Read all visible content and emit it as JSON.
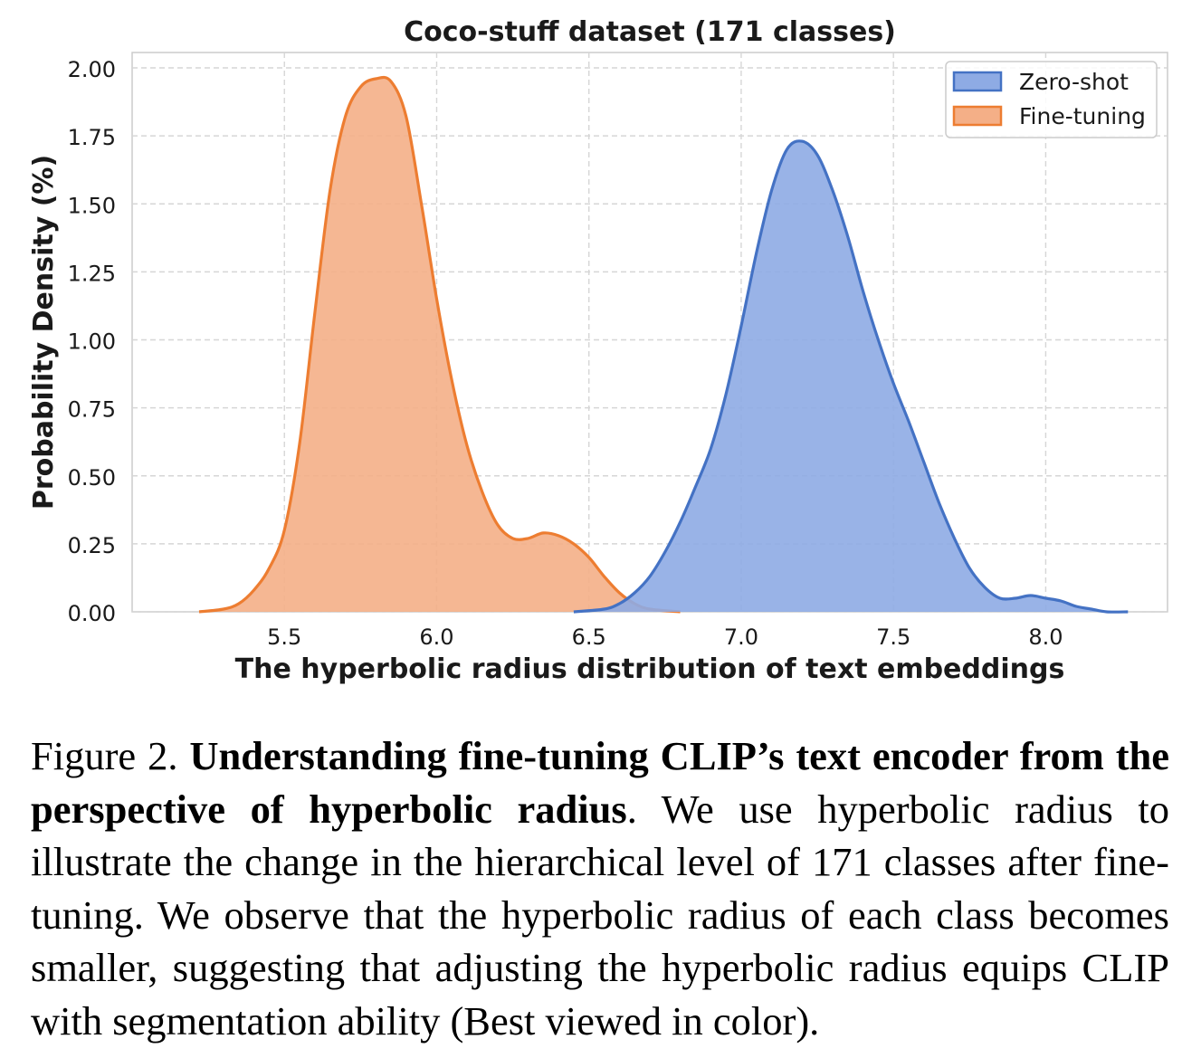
{
  "chart_data": {
    "type": "area",
    "title": "Coco-stuff dataset (171 classes)",
    "xlabel": "The hyperbolic radius distribution of text embeddings",
    "ylabel": "Probability Density (%)",
    "xlim": [
      5.0,
      8.4
    ],
    "ylim": [
      0,
      2.0
    ],
    "xticks": [
      "5.5",
      "6.0",
      "6.5",
      "7.0",
      "7.5",
      "8.0"
    ],
    "yticks": [
      "0.00",
      "0.25",
      "0.50",
      "0.75",
      "1.00",
      "1.25",
      "1.50",
      "1.75",
      "2.00"
    ],
    "grid": true,
    "legend_position": "top-right",
    "series": [
      {
        "name": "Zero-shot",
        "color": "#4472C4",
        "fill": "#8EABE4",
        "x": [
          6.45,
          6.55,
          6.6,
          6.65,
          6.7,
          6.75,
          6.8,
          6.85,
          6.9,
          6.95,
          7.0,
          7.05,
          7.1,
          7.15,
          7.2,
          7.25,
          7.3,
          7.35,
          7.4,
          7.45,
          7.5,
          7.55,
          7.6,
          7.65,
          7.7,
          7.75,
          7.8,
          7.85,
          7.9,
          7.95,
          8.0,
          8.05,
          8.1,
          8.15,
          8.2,
          8.27
        ],
        "y": [
          0.0,
          0.01,
          0.03,
          0.07,
          0.13,
          0.22,
          0.33,
          0.46,
          0.6,
          0.8,
          1.05,
          1.32,
          1.55,
          1.7,
          1.73,
          1.68,
          1.55,
          1.38,
          1.18,
          1.0,
          0.84,
          0.7,
          0.55,
          0.4,
          0.27,
          0.16,
          0.09,
          0.05,
          0.05,
          0.06,
          0.05,
          0.04,
          0.02,
          0.01,
          0.0,
          0.0
        ]
      },
      {
        "name": "Fine-tuning",
        "color": "#ED7D31",
        "fill": "#F4AF87",
        "x": [
          5.22,
          5.3,
          5.35,
          5.4,
          5.45,
          5.5,
          5.55,
          5.6,
          5.65,
          5.7,
          5.75,
          5.8,
          5.85,
          5.9,
          5.95,
          6.0,
          6.05,
          6.1,
          6.15,
          6.2,
          6.25,
          6.3,
          6.35,
          6.4,
          6.45,
          6.5,
          6.55,
          6.6,
          6.65,
          6.7,
          6.8
        ],
        "y": [
          0.0,
          0.01,
          0.03,
          0.08,
          0.16,
          0.3,
          0.62,
          1.1,
          1.55,
          1.82,
          1.93,
          1.96,
          1.95,
          1.82,
          1.5,
          1.15,
          0.85,
          0.61,
          0.44,
          0.32,
          0.27,
          0.27,
          0.29,
          0.28,
          0.25,
          0.2,
          0.13,
          0.07,
          0.03,
          0.01,
          0.0
        ]
      }
    ]
  },
  "caption": {
    "label": "Figure 2.",
    "bold": "Understanding fine-tuning CLIP’s text encoder from the perspective of hyperbolic radius",
    "text": ". We use hyperbolic radius to illustrate the change in the hierarchical level of 171 classes after fine-tuning.  We observe that the hyperbolic radius of each class becomes smaller, suggesting that adjusting the hyperbolic radius equips CLIP with segmentation ability (Best viewed in color)."
  }
}
